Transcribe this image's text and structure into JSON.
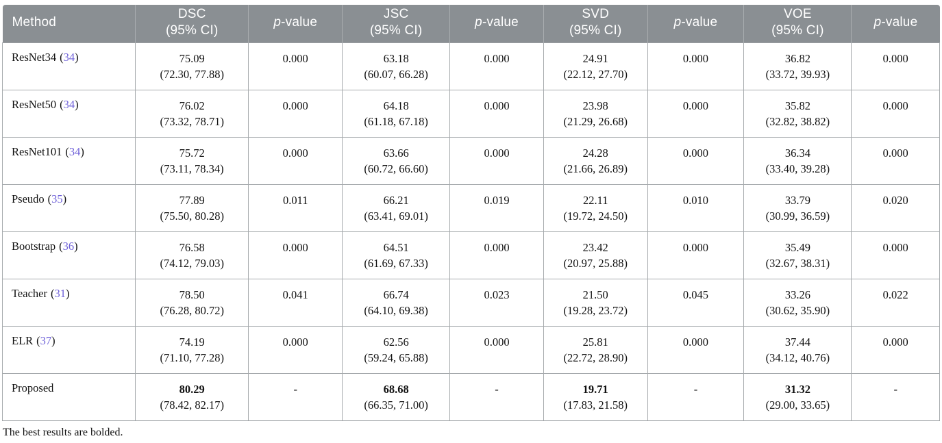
{
  "colors": {
    "header_bg": "#8a8f93",
    "header_text": "#ffffff",
    "grid_border": "#a6aaad",
    "citation_link": "#6e60d8",
    "body_text": "#111111"
  },
  "punct": {
    "open": "(",
    "close": ")"
  },
  "header": {
    "method": "Method",
    "metrics": [
      {
        "name": "DSC",
        "ci": "(95% CI)"
      },
      {
        "name": "JSC",
        "ci": "(95% CI)"
      },
      {
        "name": "SVD",
        "ci": "(95% CI)"
      },
      {
        "name": "VOE",
        "ci": "(95% CI)"
      }
    ],
    "pvalue": {
      "p": "p",
      "suffix": "-value"
    }
  },
  "rows": [
    {
      "method": "ResNet34",
      "citation": "34",
      "dsc": {
        "v": "75.09",
        "ci": "(72.30, 77.88)"
      },
      "p1": "0.000",
      "jsc": {
        "v": "63.18",
        "ci": "(60.07, 66.28)"
      },
      "p2": "0.000",
      "svd": {
        "v": "24.91",
        "ci": "(22.12, 27.70)"
      },
      "p3": "0.000",
      "voe": {
        "v": "36.82",
        "ci": "(33.72, 39.93)"
      },
      "p4": "0.000"
    },
    {
      "method": "ResNet50",
      "citation": "34",
      "dsc": {
        "v": "76.02",
        "ci": "(73.32, 78.71)"
      },
      "p1": "0.000",
      "jsc": {
        "v": "64.18",
        "ci": "(61.18, 67.18)"
      },
      "p2": "0.000",
      "svd": {
        "v": "23.98",
        "ci": "(21.29, 26.68)"
      },
      "p3": "0.000",
      "voe": {
        "v": "35.82",
        "ci": "(32.82, 38.82)"
      },
      "p4": "0.000"
    },
    {
      "method": "ResNet101",
      "citation": "34",
      "dsc": {
        "v": "75.72",
        "ci": "(73.11, 78.34)"
      },
      "p1": "0.000",
      "jsc": {
        "v": "63.66",
        "ci": "(60.72, 66.60)"
      },
      "p2": "0.000",
      "svd": {
        "v": "24.28",
        "ci": "(21.66, 26.89)"
      },
      "p3": "0.000",
      "voe": {
        "v": "36.34",
        "ci": "(33.40, 39.28)"
      },
      "p4": "0.000"
    },
    {
      "method": "Pseudo",
      "citation": "35",
      "dsc": {
        "v": "77.89",
        "ci": "(75.50, 80.28)"
      },
      "p1": "0.011",
      "jsc": {
        "v": "66.21",
        "ci": "(63.41, 69.01)"
      },
      "p2": "0.019",
      "svd": {
        "v": "22.11",
        "ci": "(19.72, 24.50)"
      },
      "p3": "0.010",
      "voe": {
        "v": "33.79",
        "ci": "(30.99, 36.59)"
      },
      "p4": "0.020"
    },
    {
      "method": "Bootstrap",
      "citation": "36",
      "dsc": {
        "v": "76.58",
        "ci": "(74.12, 79.03)"
      },
      "p1": "0.000",
      "jsc": {
        "v": "64.51",
        "ci": "(61.69, 67.33)"
      },
      "p2": "0.000",
      "svd": {
        "v": "23.42",
        "ci": "(20.97, 25.88)"
      },
      "p3": "0.000",
      "voe": {
        "v": "35.49",
        "ci": "(32.67, 38.31)"
      },
      "p4": "0.000"
    },
    {
      "method": "Teacher",
      "citation": "31",
      "dsc": {
        "v": "78.50",
        "ci": "(76.28, 80.72)"
      },
      "p1": "0.041",
      "jsc": {
        "v": "66.74",
        "ci": "(64.10, 69.38)"
      },
      "p2": "0.023",
      "svd": {
        "v": "21.50",
        "ci": "(19.28, 23.72)"
      },
      "p3": "0.045",
      "voe": {
        "v": "33.26",
        "ci": "(30.62, 35.90)"
      },
      "p4": "0.022"
    },
    {
      "method": "ELR",
      "citation": "37",
      "dsc": {
        "v": "74.19",
        "ci": "(71.10, 77.28)"
      },
      "p1": "0.000",
      "jsc": {
        "v": "62.56",
        "ci": "(59.24, 65.88)"
      },
      "p2": "0.000",
      "svd": {
        "v": "25.81",
        "ci": "(22.72, 28.90)"
      },
      "p3": "0.000",
      "voe": {
        "v": "37.44",
        "ci": "(34.12, 40.76)"
      },
      "p4": "0.000"
    },
    {
      "method": "Proposed",
      "dsc": {
        "v": "80.29",
        "ci": "(78.42, 82.17)"
      },
      "p1": "-",
      "jsc": {
        "v": "68.68",
        "ci": "(66.35, 71.00)"
      },
      "p2": "-",
      "svd": {
        "v": "19.71",
        "ci": "(17.83, 21.58)"
      },
      "p3": "-",
      "voe": {
        "v": "31.32",
        "ci": "(29.00, 33.65)"
      },
      "p4": "-"
    }
  ],
  "footnote": "The best results are bolded."
}
